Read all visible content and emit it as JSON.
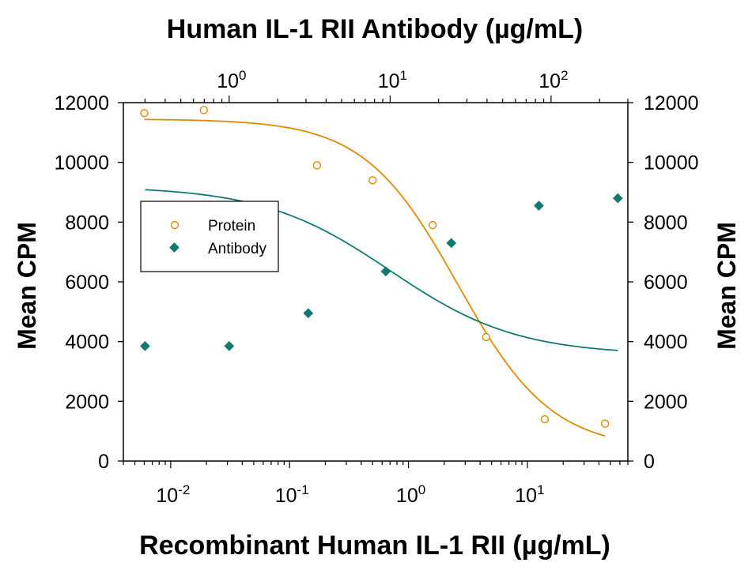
{
  "chart_data": {
    "type": "scatter",
    "title": "",
    "top_axis_label": "Human IL-1 RII Antibody (µg/mL)",
    "xlabel": "Recombinant Human IL-1 RII (µg/mL)",
    "ylabel": "Mean CPM",
    "ylabel_right": "Mean CPM",
    "x_scale": "log",
    "x_top_scale": "log",
    "x_range": [
      0.004,
      70
    ],
    "x_top_range": [
      0.22,
      300
    ],
    "y_range": [
      0,
      12000
    ],
    "y_ticks": [
      0,
      2000,
      4000,
      6000,
      8000,
      10000,
      12000
    ],
    "y_tick_labels": [
      "0",
      "2000",
      "4000",
      "6000",
      "8000",
      "10000",
      "12000"
    ],
    "x_ticks": [
      0.01,
      0.1,
      1,
      10
    ],
    "x_tick_labels": [
      {
        "base": "10",
        "exp": "-2"
      },
      {
        "base": "10",
        "exp": "-1"
      },
      {
        "base": "10",
        "exp": "0"
      },
      {
        "base": "10",
        "exp": "1"
      }
    ],
    "x_top_ticks": [
      1,
      10,
      100
    ],
    "x_top_tick_labels": [
      {
        "base": "10",
        "exp": "0"
      },
      {
        "base": "10",
        "exp": "1"
      },
      {
        "base": "10",
        "exp": "2"
      }
    ],
    "grid": false,
    "legend_position": "left",
    "series": [
      {
        "name": "Protein",
        "axis": "bottom",
        "marker": "open-circle",
        "color": "#e08a00",
        "x": [
          0.006,
          0.019,
          0.17,
          0.5,
          1.6,
          4.5,
          14,
          45
        ],
        "y": [
          11650,
          11750,
          9900,
          9400,
          7900,
          4150,
          1400,
          1250
        ],
        "fit": {
          "bottom": 380,
          "top": 11450,
          "ec50": 2.6,
          "hill": 1.1
        }
      },
      {
        "name": "Antibody",
        "axis": "top",
        "marker": "filled-diamond",
        "color": "#117a6e",
        "x": [
          0.3,
          1.0,
          3.1,
          9.4,
          24,
          84,
          260
        ],
        "y": [
          3850,
          3850,
          4950,
          6350,
          7300,
          8550,
          8800
        ],
        "fit": {
          "bottom": 3550,
          "top": 9200,
          "ec50": 10,
          "hill": 1.1
        }
      }
    ]
  }
}
